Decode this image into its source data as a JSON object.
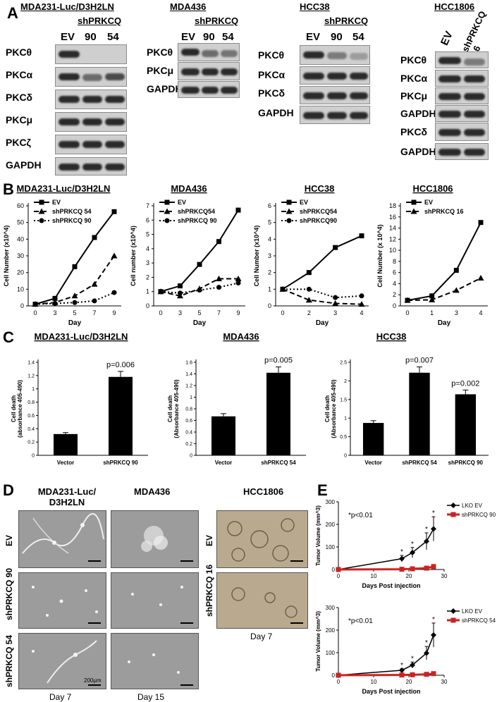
{
  "panels": {
    "A": "A",
    "B": "B",
    "C": "C",
    "D": "D",
    "E": "E"
  },
  "panelA": {
    "blots": [
      {
        "cell_line": "MDA231-Luc/D3H2LN",
        "construct": "shPRKCQ",
        "lanes": [
          "EV",
          "90",
          "54"
        ],
        "rows": [
          "PKCθ",
          "PKCα",
          "PKCδ",
          "PKCμ",
          "PKCζ",
          "GAPDH"
        ]
      },
      {
        "cell_line": "MDA436",
        "construct": "shPRKCQ",
        "lanes": [
          "EV",
          "90",
          "54"
        ],
        "rows": [
          "PKCθ",
          "PKCμ",
          "GAPDH"
        ]
      },
      {
        "cell_line": "HCC38",
        "construct": "shPRKCQ",
        "lanes": [
          "EV",
          "90",
          "54"
        ],
        "rows": [
          "PKCθ",
          "PKCα",
          "PKCδ",
          "GAPDH"
        ]
      },
      {
        "cell_line": "HCC1806",
        "construct": "",
        "lanes": [
          "EV",
          "shPRKCQ 16"
        ],
        "rows": [
          "PKCθ",
          "PKCα",
          "PKCμ",
          "GAPDH",
          "PKCδ",
          "GAPDH"
        ]
      }
    ]
  },
  "panelC": {
    "titles": [
      "MDA231-Luc/D3H2LN",
      "MDA436",
      "HCC38"
    ]
  },
  "panelD": {
    "columns": [
      "MDA231-Luc/ D3H2LN",
      "MDA436",
      "HCC1806"
    ],
    "rows_left": [
      "EV",
      "shPRKCQ 90",
      "shPRKCQ 54"
    ],
    "rows_right": [
      "EV",
      "shPRKCQ 16"
    ],
    "days": [
      "Day 7",
      "Day 15",
      "Day 7"
    ],
    "scale_label": "200μm"
  },
  "chart_data": [
    {
      "type": "line",
      "title": "MDA231-Luc/D3H2LN",
      "xlabel": "Day",
      "ylabel": "Cell Number (x10^4)",
      "x": [
        "0",
        "3",
        "5",
        "7",
        "9"
      ],
      "ylim": [
        0,
        60
      ],
      "yticks": [
        0,
        10,
        20,
        30,
        40,
        50,
        60
      ],
      "series": [
        {
          "name": "EV",
          "values": [
            1,
            4.5,
            23.5,
            41,
            56.5
          ]
        },
        {
          "name": "shPRKCQ 54",
          "values": [
            1,
            2,
            6,
            13,
            30
          ]
        },
        {
          "name": "shPRKCQ 90",
          "values": [
            1,
            1.5,
            2,
            3,
            8
          ]
        }
      ]
    },
    {
      "type": "line",
      "title": "MDA436",
      "xlabel": "Day",
      "ylabel": "Cell number (x10^4)",
      "x": [
        "0",
        "3",
        "5",
        "7",
        "9"
      ],
      "ylim": [
        0,
        7
      ],
      "yticks": [
        0,
        1,
        2,
        3,
        4,
        5,
        6,
        7
      ],
      "series": [
        {
          "name": "EV",
          "values": [
            1,
            1.4,
            2.9,
            4.5,
            6.7
          ]
        },
        {
          "name": "shPRKCQ54",
          "values": [
            1,
            0.7,
            1.2,
            1.9,
            1.9
          ]
        },
        {
          "name": "shPRKCQ 90",
          "values": [
            1,
            0.9,
            1.1,
            1.3,
            1.6
          ]
        }
      ]
    },
    {
      "type": "line",
      "title": "HCC38",
      "xlabel": "Day",
      "ylabel": "Cell Number (x10^4)",
      "x": [
        "0",
        "2",
        "3",
        "4"
      ],
      "ylim": [
        0,
        6
      ],
      "yticks": [
        0,
        1,
        2,
        3,
        4,
        5,
        6
      ],
      "series": [
        {
          "name": "EV",
          "values": [
            1,
            2,
            3.5,
            4.2
          ]
        },
        {
          "name": "shPRKCQ54",
          "values": [
            1,
            0.35,
            0.15,
            0.1
          ]
        },
        {
          "name": "shPRKCQ90",
          "values": [
            1,
            1,
            0.5,
            0.6
          ]
        }
      ]
    },
    {
      "type": "line",
      "title": "HCC1806",
      "xlabel": "Day",
      "ylabel": "Cell Number (x 10^4)",
      "x": [
        "0",
        "1",
        "3",
        "4"
      ],
      "ylim": [
        0,
        18
      ],
      "yticks": [
        0,
        2,
        4,
        6,
        8,
        10,
        12,
        14,
        16,
        18
      ],
      "series": [
        {
          "name": "EV",
          "values": [
            1,
            1.8,
            6.4,
            15
          ]
        },
        {
          "name": "shPRKCQ 16",
          "values": [
            1,
            1.1,
            2.8,
            5
          ]
        }
      ]
    },
    {
      "type": "bar",
      "title": "MDA231-Luc/D3H2LN",
      "ylabel": "Cell death (absorbance 405-490)",
      "categories": [
        "Vector",
        "shPRKCQ 90"
      ],
      "values": [
        0.32,
        1.18
      ],
      "ylim": [
        0,
        1.4
      ],
      "yticks": [
        "0",
        "0.2",
        "0.4",
        "0.6",
        "0.8",
        "1",
        "1.2",
        "1.4"
      ],
      "annotations": [
        "",
        "p=0.006"
      ]
    },
    {
      "type": "bar",
      "title": "MDA436",
      "ylabel": "Cell death (Absorbance 405-490)",
      "categories": [
        "Vector",
        "shPRKCQ 54"
      ],
      "values": [
        0.67,
        1.42
      ],
      "ylim": [
        0,
        1.6
      ],
      "yticks": [
        "0",
        "0.2",
        "0.4",
        "0.6",
        "0.8",
        "1",
        "1.2",
        "1.4",
        "1.6"
      ],
      "annotations": [
        "",
        "p=0.005"
      ]
    },
    {
      "type": "bar",
      "title": "HCC38",
      "ylabel": "Cell death (Absorbance 405-490)",
      "categories": [
        "Vector",
        "shPRKCQ 54",
        "shPRKCQ 90"
      ],
      "values": [
        0.87,
        2.22,
        1.64
      ],
      "ylim": [
        0,
        2.5
      ],
      "yticks": [
        "0",
        "0.5",
        "1",
        "1.5",
        "2",
        "2.5"
      ],
      "annotations": [
        "",
        "p=0.007",
        "p=0.002"
      ]
    },
    {
      "type": "line",
      "title": "",
      "xlabel": "Days Post injection",
      "ylabel": "Tumor Volume (mm^3)",
      "xlim": [
        0,
        30
      ],
      "ylim": [
        0,
        300
      ],
      "xticks": [
        0,
        10,
        20,
        30
      ],
      "yticks": [
        0,
        100,
        200,
        300
      ],
      "note": "*p<0.01",
      "series": [
        {
          "name": "LKO EV",
          "x": [
            0,
            18,
            21,
            25,
            27
          ],
          "values": [
            0,
            48,
            75,
            125,
            180
          ]
        },
        {
          "name": "shPRKCQ 90",
          "x": [
            0,
            18,
            21,
            25,
            27
          ],
          "values": [
            0,
            1,
            3,
            6,
            13
          ]
        }
      ]
    },
    {
      "type": "line",
      "title": "",
      "xlabel": "Days Post injection",
      "ylabel": "Tumor Volume (mm^3)",
      "xlim": [
        0,
        30
      ],
      "ylim": [
        0,
        300
      ],
      "xticks": [
        0,
        10,
        20,
        30
      ],
      "yticks": [
        0,
        100,
        200,
        300
      ],
      "note": "*p<0.01",
      "series": [
        {
          "name": "LKO EV",
          "x": [
            0,
            18,
            21,
            25,
            27
          ],
          "values": [
            0,
            22,
            45,
            98,
            178
          ]
        },
        {
          "name": "shPRKCQ 54",
          "x": [
            0,
            18,
            21,
            25,
            27
          ],
          "values": [
            0,
            1,
            2,
            4,
            7
          ]
        }
      ]
    }
  ]
}
